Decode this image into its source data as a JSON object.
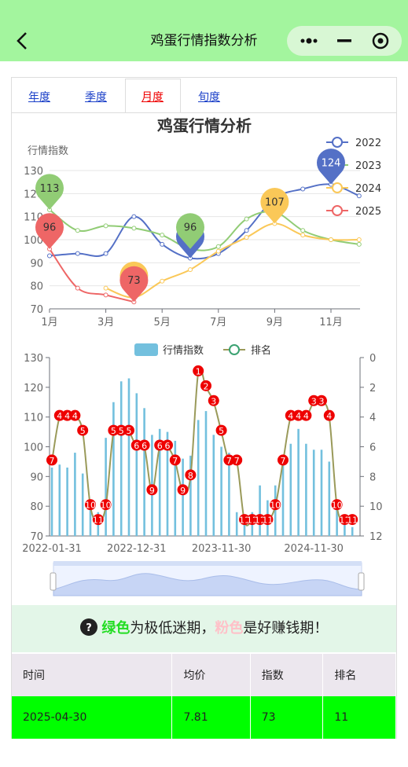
{
  "header": {
    "title": "鸡蛋行情指数分析"
  },
  "tabs": {
    "items": [
      "年度",
      "季度",
      "月度",
      "旬度"
    ],
    "active": "月度"
  },
  "chart_data": [
    {
      "type": "line",
      "title": "鸡蛋行情分析",
      "y_label": "行情指数",
      "categories": [
        "1月",
        null,
        "3月",
        null,
        "5月",
        null,
        "7月",
        null,
        "9月",
        null,
        "11月",
        null
      ],
      "series": [
        {
          "name": "2022",
          "color": "#5470c6",
          "values": [
            93,
            94,
            94,
            110,
            98,
            92,
            94,
            104,
            118,
            122,
            124,
            119
          ]
        },
        {
          "name": "2023",
          "color": "#91cc75",
          "values": [
            113,
            104,
            106,
            105,
            102,
            96,
            97,
            109,
            112,
            104,
            100,
            98
          ]
        },
        {
          "name": "2024",
          "color": "#fac858",
          "values": [
            null,
            null,
            79,
            75,
            82,
            87,
            95,
            101,
            107,
            102,
            100,
            100
          ]
        },
        {
          "name": "2025",
          "color": "#ee6666",
          "values": [
            96,
            79,
            76,
            73,
            null,
            null,
            null,
            null,
            null,
            null,
            null,
            null
          ]
        }
      ],
      "ylim": [
        70,
        130
      ],
      "yticks": [
        70,
        80,
        90,
        100,
        110,
        120,
        130
      ],
      "grid": true
    },
    {
      "type": "bar",
      "categories": [
        "2022-01-31",
        null,
        null,
        null,
        null,
        null,
        null,
        null,
        null,
        null,
        null,
        "2022-12-31",
        null,
        null,
        null,
        null,
        null,
        null,
        null,
        null,
        null,
        null,
        "2023-11-30",
        null,
        null,
        null,
        null,
        null,
        null,
        null,
        null,
        null,
        null,
        null,
        "2024-11-30",
        null,
        null,
        null,
        null,
        null
      ],
      "series": [
        {
          "name": "行情指数",
          "type": "bar",
          "color": "#73c0de",
          "values": [
            93,
            94,
            93,
            98,
            91,
            80,
            78,
            103,
            115,
            122,
            123,
            118,
            113,
            104,
            106,
            105,
            102,
            96,
            97,
            109,
            112,
            104,
            100,
            98,
            78,
            77,
            78,
            87,
            82,
            87,
            95,
            101,
            106,
            101,
            99,
            99,
            95,
            79,
            76,
            73
          ]
        },
        {
          "name": "排名",
          "type": "line",
          "axis": "y2",
          "color": "#9a9a5a",
          "marker_color": "#3ba272",
          "label_color": "#ee0000",
          "values": [
            7,
            4,
            4,
            4,
            5,
            10,
            11,
            10,
            5,
            5,
            5,
            6,
            6,
            9,
            6,
            6,
            7,
            9,
            8,
            1,
            2,
            3,
            5,
            7,
            7,
            11,
            11,
            11,
            11,
            10,
            7,
            4,
            4,
            4,
            3,
            3,
            4,
            10,
            11,
            11
          ]
        }
      ],
      "ylim": [
        70,
        130
      ],
      "yticks": [
        70,
        80,
        90,
        100,
        110,
        120,
        130
      ],
      "y2lim": [
        0,
        12
      ],
      "y2ticks": [
        0,
        2,
        4,
        6,
        8,
        10,
        12
      ],
      "y2_inverse": true
    }
  ],
  "notice": {
    "parts": [
      "绿色",
      "为极低迷期，",
      "粉色",
      "是好赚钱期！"
    ]
  },
  "table": {
    "columns": [
      "时间",
      "均价",
      "指数",
      "排名"
    ],
    "rows": [
      [
        "2025-04-30",
        7.81,
        73,
        11
      ]
    ]
  }
}
